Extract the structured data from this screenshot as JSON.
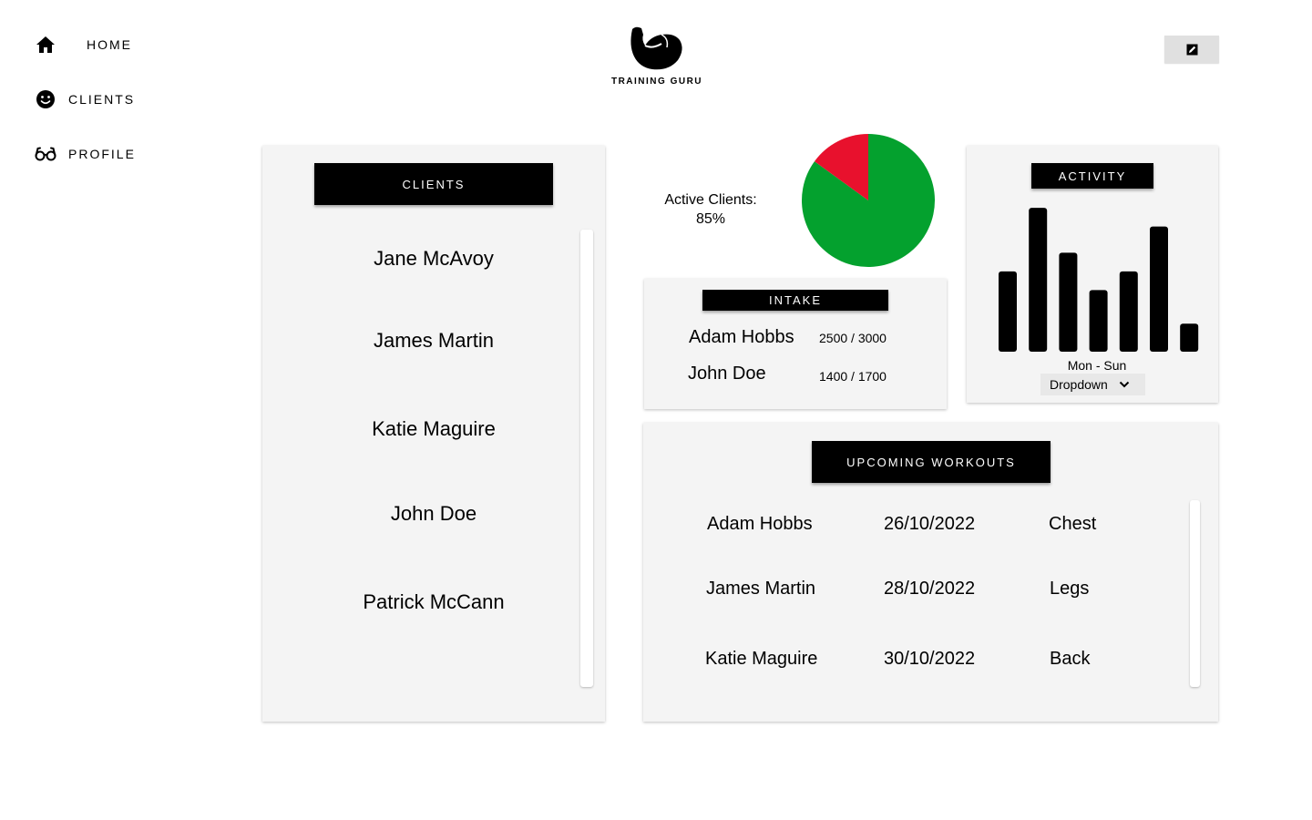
{
  "nav": {
    "items": [
      {
        "label": "HOME",
        "icon": "home-icon"
      },
      {
        "label": "CLIENTS",
        "icon": "smiley-icon"
      },
      {
        "label": "PROFILE",
        "icon": "glasses-icon"
      }
    ]
  },
  "logo": {
    "text": "TRAINING GURU",
    "icon": "flexed-bicep-icon"
  },
  "edit_button": {
    "icon": "edit-icon"
  },
  "clients_panel": {
    "header": "CLIENTS",
    "clients": [
      "Jane McAvoy",
      "James Martin",
      "Katie Maguire",
      "John Doe",
      "Patrick McCann"
    ]
  },
  "active_clients": {
    "label": "Active Clients:",
    "value_text": "85%",
    "percent": 85,
    "colors": {
      "active": "#04a12e",
      "inactive": "#e8112d"
    }
  },
  "intake": {
    "header": "INTAKE",
    "rows": [
      {
        "name": "Adam Hobbs",
        "value": "2500 / 3000"
      },
      {
        "name": "John Doe",
        "value": "1400 / 1700"
      }
    ]
  },
  "activity": {
    "header": "ACTIVITY",
    "xlabel": "Mon - Sun",
    "dropdown_label": "Dropdown",
    "dropdown_icon": "chevron-down-icon"
  },
  "chart_data": {
    "type": "bar",
    "title": "ACTIVITY",
    "xlabel": "Mon - Sun",
    "ylabel": "",
    "values": [
      4.3,
      7.7,
      5.3,
      3.3,
      4.3,
      6.7,
      1.5
    ],
    "ylim": [
      0,
      8
    ],
    "grid": false,
    "bar_color": "#000000"
  },
  "workouts": {
    "header": "UPCOMING WORKOUTS",
    "rows": [
      {
        "name": "Adam Hobbs",
        "date": "26/10/2022",
        "type": "Chest"
      },
      {
        "name": "James Martin",
        "date": "28/10/2022",
        "type": "Legs"
      },
      {
        "name": "Katie Maguire",
        "date": "30/10/2022",
        "type": "Back"
      }
    ]
  }
}
